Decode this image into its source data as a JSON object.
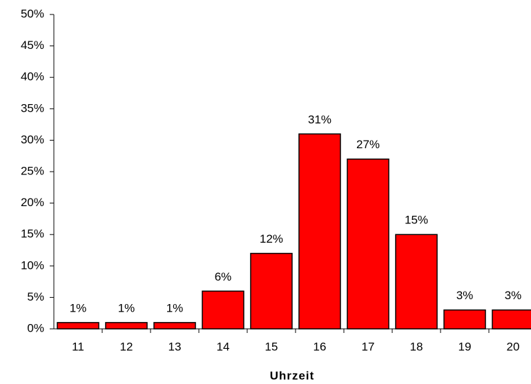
{
  "chart_data": {
    "type": "bar",
    "x_label": "Uhrzeit",
    "categories": [
      "11",
      "12",
      "13",
      "14",
      "15",
      "16",
      "17",
      "18",
      "19",
      "20"
    ],
    "values": [
      1,
      1,
      1,
      6,
      12,
      31,
      27,
      15,
      3,
      3
    ],
    "value_labels": [
      "1%",
      "1%",
      "1%",
      "6%",
      "12%",
      "31%",
      "27%",
      "15%",
      "3%",
      "3%"
    ],
    "color": "#ff0000",
    "ylim": [
      0,
      50
    ],
    "yticks": [
      {
        "value": 0,
        "label": "0%"
      },
      {
        "value": 5,
        "label": "5%"
      },
      {
        "value": 10,
        "label": "10%"
      },
      {
        "value": 15,
        "label": "15%"
      },
      {
        "value": 20,
        "label": "20%"
      },
      {
        "value": 25,
        "label": "25%"
      },
      {
        "value": 30,
        "label": "30%"
      },
      {
        "value": 35,
        "label": "35%"
      },
      {
        "value": 40,
        "label": "40%"
      },
      {
        "value": 45,
        "label": "45%"
      },
      {
        "value": 50,
        "label": "50%"
      }
    ],
    "grid": false
  }
}
